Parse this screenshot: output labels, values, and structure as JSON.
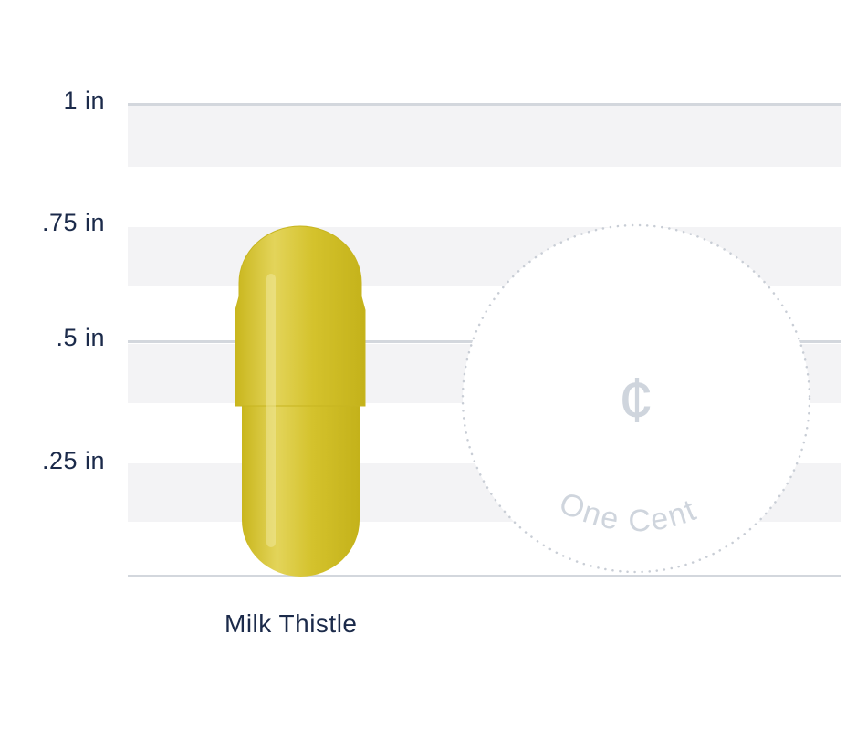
{
  "y_axis": {
    "labels": [
      "1 in",
      ".75 in",
      ".5 in",
      ".25 in"
    ]
  },
  "capsule": {
    "label": "Milk Thistle",
    "length_in": 0.75,
    "color": "#d2c22a"
  },
  "coin": {
    "symbol": "¢",
    "label": "One Cent",
    "diameter_in": 0.75,
    "color": "#cfd5dd"
  },
  "colors": {
    "label_text": "#1b2a4a",
    "band": "#f3f3f5",
    "rule": "#d3d7dd"
  }
}
